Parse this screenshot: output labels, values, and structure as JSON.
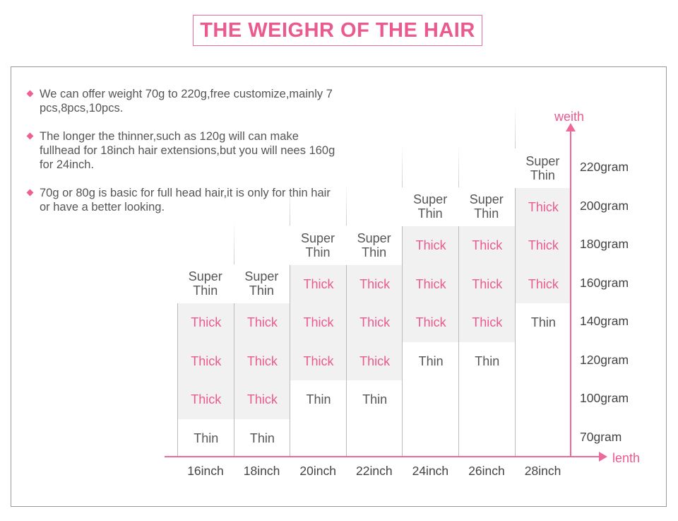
{
  "title": "THE WEIGHR OF THE HAIR",
  "bullets": [
    "We can offer weight 70g to 220g,free customize,mainly 7 pcs,8pcs,10pcs.",
    "The longer the thinner,such as 120g will can make fullhead for 18inch hair extensions,but you will nees 160g for 24inch.",
    "70g or 80g is basic for full head hair,it is only for thin hair or have a better looking."
  ],
  "colors": {
    "accent": "#ea5a8f",
    "thick_bg": "#f1f1f1"
  },
  "chart_data": {
    "type": "table",
    "xlabel": "lenth",
    "ylabel": "weith",
    "columns": [
      "16inch",
      "18inch",
      "20inch",
      "22inch",
      "24inch",
      "26inch",
      "28inch"
    ],
    "rows": [
      "70gram",
      "100gram",
      "120gram",
      "140gram",
      "160gram",
      "180gram",
      "200gram",
      "220gram"
    ],
    "cells": [
      [
        "Thin",
        "Thick",
        "Thick",
        "Thick",
        "Super Thin",
        null,
        null,
        null
      ],
      [
        "Thin",
        "Thick",
        "Thick",
        "Thick",
        "Super Thin",
        null,
        null,
        null
      ],
      [
        "",
        "Thin",
        "Thick",
        "Thick",
        "Thick",
        "Super Thin",
        null,
        null
      ],
      [
        "",
        "Thin",
        "Thick",
        "Thick",
        "Thick",
        "Super Thin",
        null,
        null
      ],
      [
        "",
        "",
        "Thin",
        "Thick",
        "Thick",
        "Thick",
        "Super Thin",
        null
      ],
      [
        "",
        "",
        "Thin",
        "Thick",
        "Thick",
        "Thick",
        "Super Thin",
        null
      ],
      [
        "",
        "",
        "",
        "Thin",
        "Thick",
        "Thick",
        "Thick",
        "Super Thin"
      ]
    ]
  }
}
